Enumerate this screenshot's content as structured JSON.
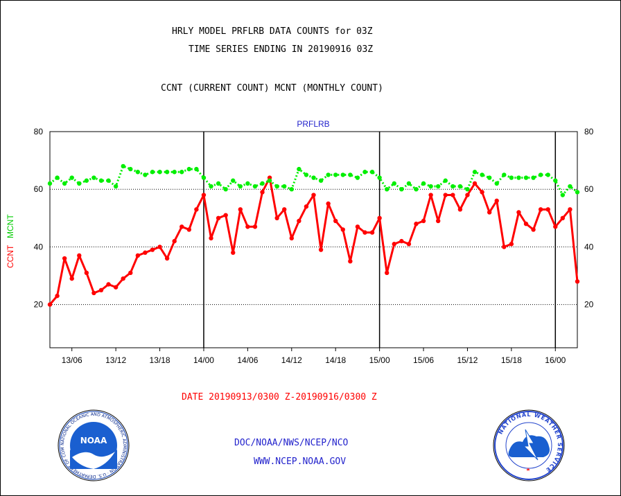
{
  "title_line1": "HRLY MODEL PRFLRB DATA COUNTS for 03Z",
  "title_line2": "TIME SERIES ENDING IN 20190916 03Z",
  "subtitle": "CCNT (CURRENT COUNT) MCNT (MONTHLY COUNT)",
  "date_range": "DATE 20190913/0300 Z-20190916/0300 Z",
  "footer_org": "DOC/NOAA/NWS/NCEP/NCO",
  "footer_url": "WWW.NCEP.NOAA.GOV",
  "logos": {
    "left": "NOAA",
    "left_ring_text": "NATIONAL OCEANIC AND ATMOSPHERIC ADMINISTRATION · U.S. DEPARTMENT OF COMMERCE",
    "right_ring_text": "NATIONAL WEATHER SERVICE"
  },
  "colors": {
    "ccnt": "#ff0000",
    "mcnt": "#00ee00",
    "title": "#000000",
    "footer": "#2222cc",
    "plot_title": "#2222cc"
  },
  "chart_data": {
    "type": "line",
    "title": "PRFLRB",
    "ylabel_left": "CCNT",
    "ylabel_right": "MCNT",
    "ylim": [
      5,
      80
    ],
    "y_ticks": [
      20,
      40,
      60,
      80
    ],
    "x_ticks": [
      "13/06",
      "13/12",
      "13/18",
      "14/00",
      "14/06",
      "14/12",
      "14/18",
      "15/00",
      "15/06",
      "15/12",
      "15/18",
      "16/00"
    ],
    "day_boundaries": [
      "14/00",
      "15/00",
      "16/00"
    ],
    "x_start": "13/03",
    "x_end": "16/03",
    "series": [
      {
        "name": "CCNT",
        "color": "#ff0000",
        "values": [
          20,
          23,
          36,
          29,
          37,
          31,
          24,
          25,
          27,
          26,
          29,
          31,
          37,
          38,
          39,
          40,
          36,
          42,
          47,
          46,
          53,
          58,
          43,
          50,
          51,
          38,
          53,
          47,
          47,
          59,
          64,
          50,
          53,
          43,
          49,
          54,
          58,
          39,
          55,
          49,
          46,
          35,
          47,
          45,
          45,
          50,
          31,
          41,
          42,
          41,
          48,
          49,
          58,
          49,
          58,
          58,
          53,
          58,
          62,
          59,
          52,
          56,
          40,
          41,
          52,
          48,
          46,
          53,
          53,
          47,
          50,
          53,
          28
        ]
      },
      {
        "name": "MCNT",
        "color": "#00ee00",
        "values": [
          62,
          64,
          62,
          64,
          62,
          63,
          64,
          63,
          63,
          61,
          68,
          67,
          66,
          65,
          66,
          66,
          66,
          66,
          66,
          67,
          67,
          64,
          61,
          62,
          60,
          63,
          61,
          62,
          61,
          62,
          63,
          61,
          61,
          60,
          67,
          65,
          64,
          63,
          65,
          65,
          65,
          65,
          64,
          66,
          66,
          64,
          60,
          62,
          60,
          62,
          60,
          62,
          61,
          61,
          63,
          61,
          61,
          60,
          66,
          65,
          64,
          62,
          65,
          64,
          64,
          64,
          64,
          65,
          65,
          63,
          58,
          61,
          59
        ]
      }
    ]
  }
}
